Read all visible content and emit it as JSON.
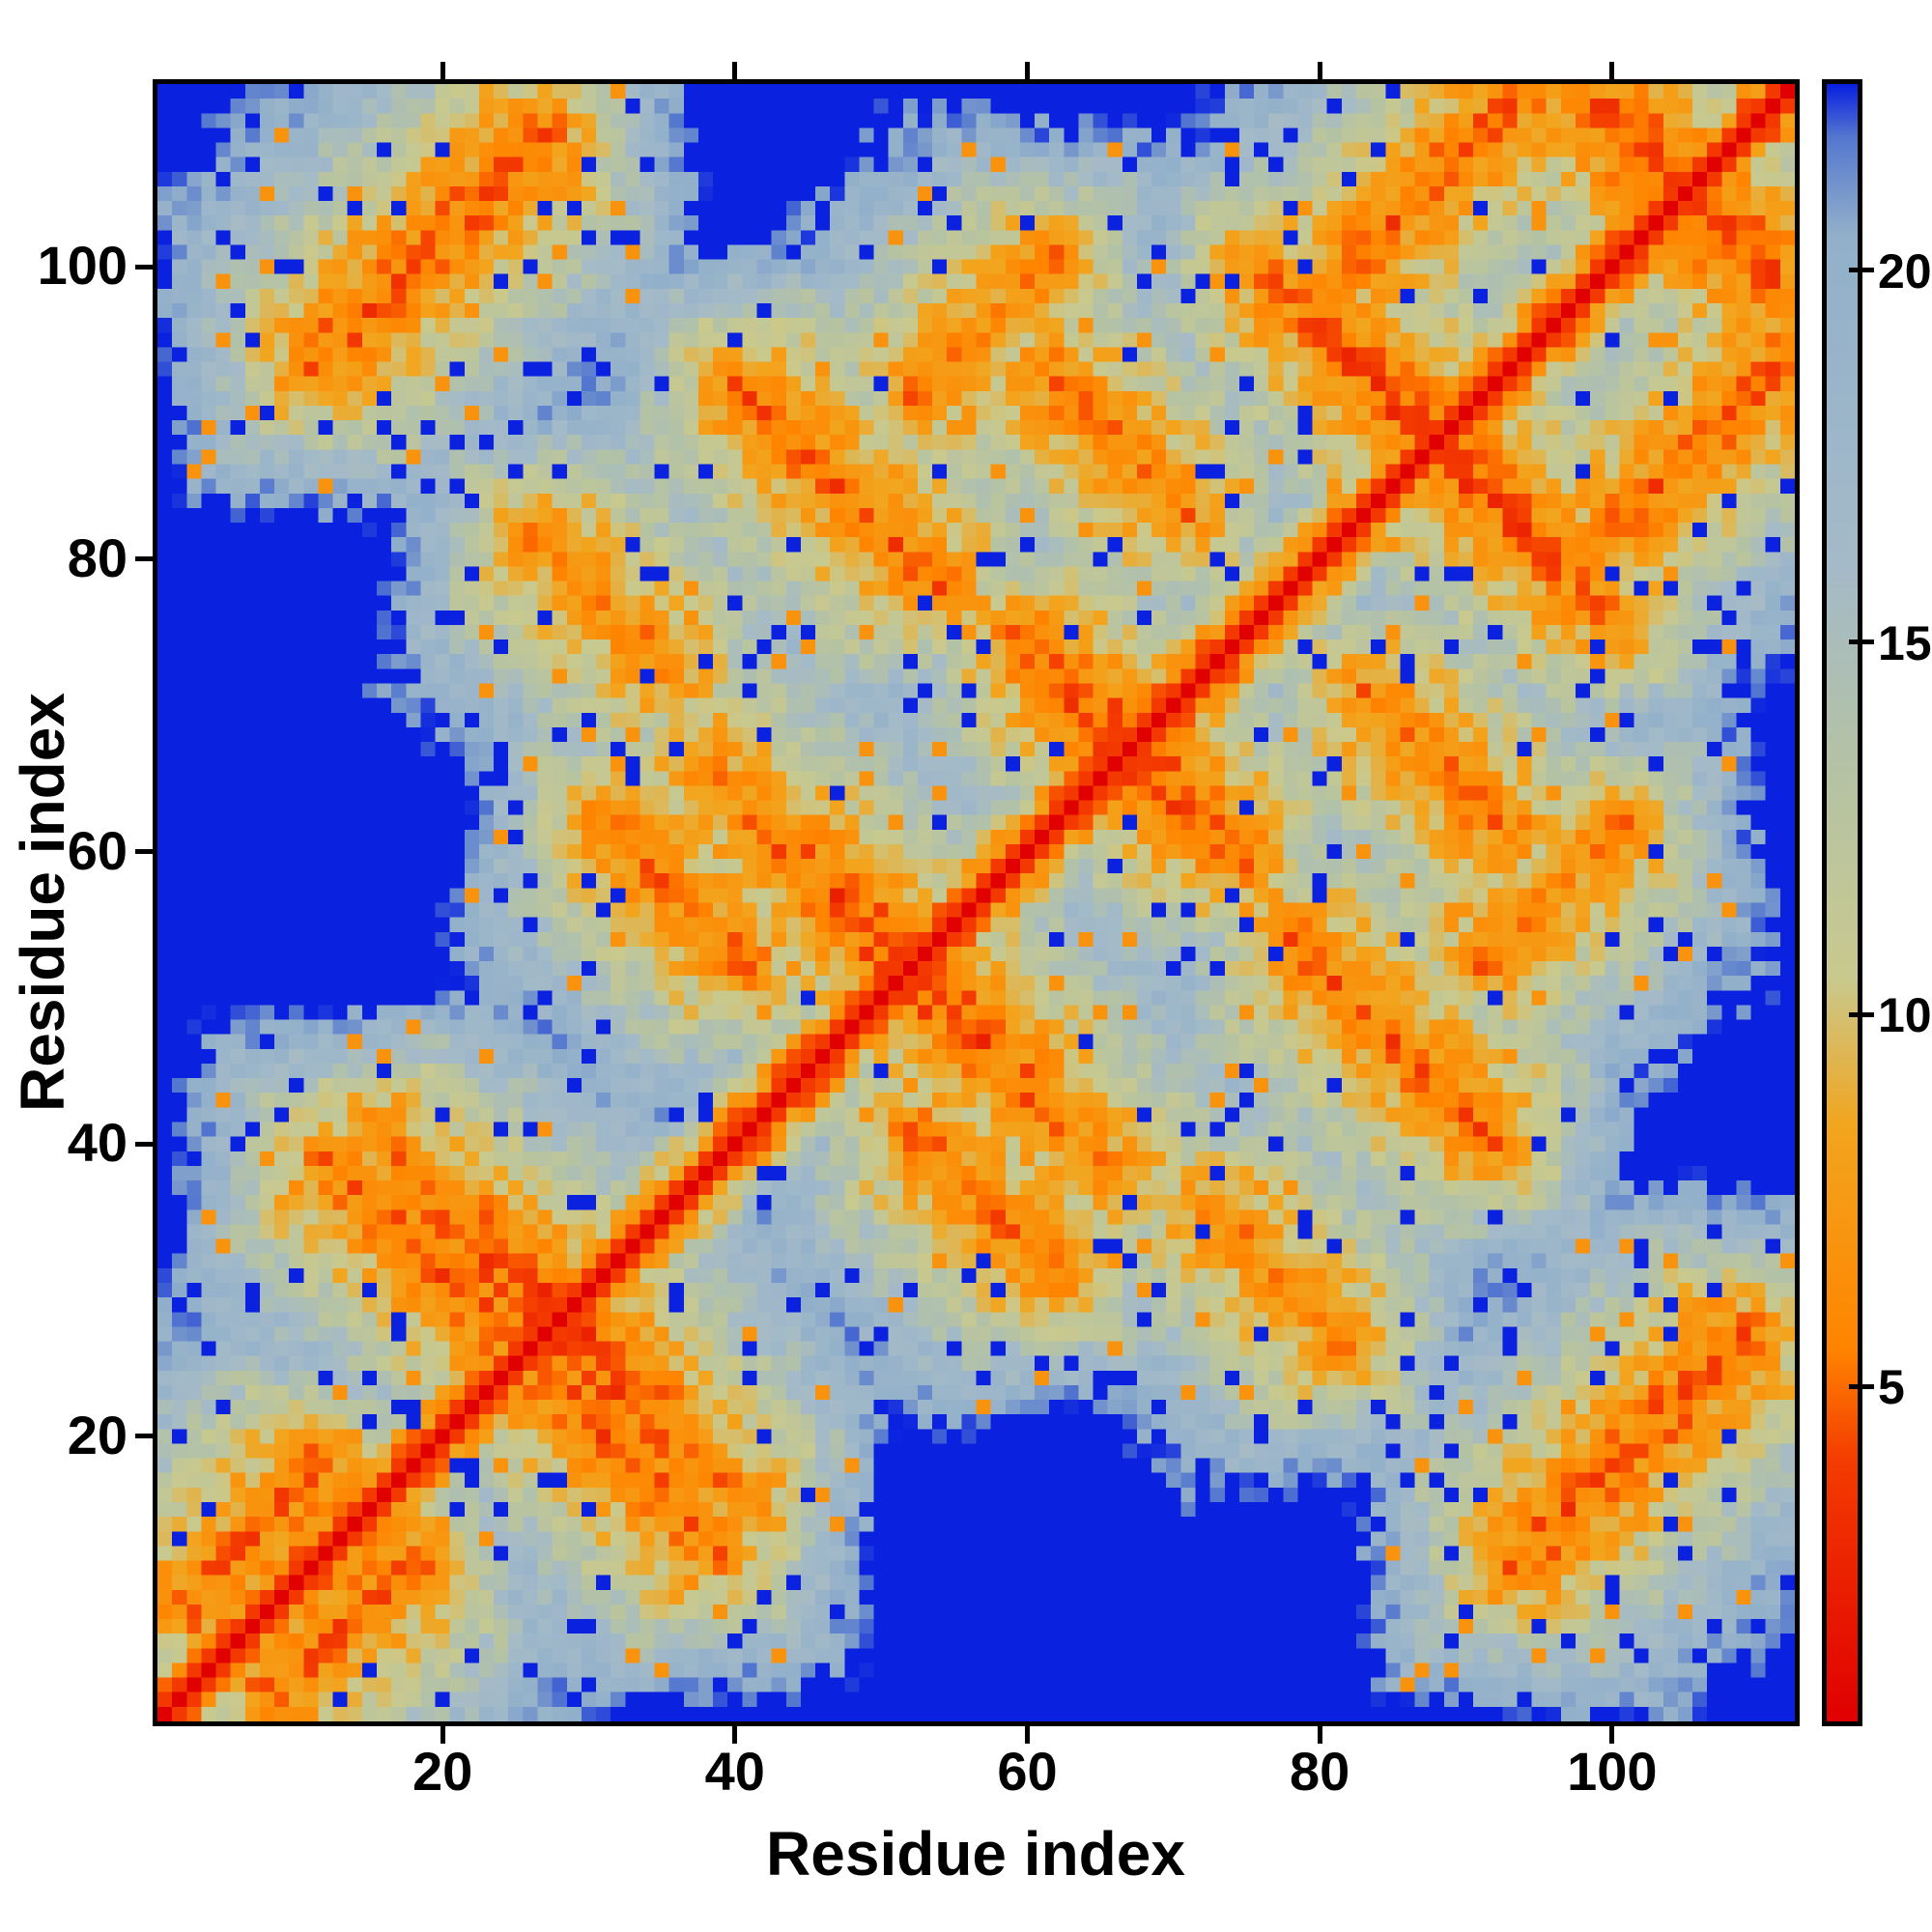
{
  "chart_data": {
    "type": "heatmap",
    "title": "",
    "xlabel": "Residue index",
    "ylabel": "Residue index",
    "x_ticks": [
      20,
      40,
      60,
      80,
      100
    ],
    "y_ticks": [
      20,
      40,
      60,
      80,
      100
    ],
    "x_range": [
      1,
      112
    ],
    "y_range": [
      1,
      112
    ],
    "grid": false,
    "legend": "colorbar-right",
    "colorbar": {
      "ticks": [
        5,
        10,
        15,
        20
      ],
      "range": [
        0.5,
        22.5
      ]
    },
    "colormap": {
      "stops": [
        [
          0.5,
          "#e00000"
        ],
        [
          4.0,
          "#f43c00"
        ],
        [
          5.5,
          "#ff8400"
        ],
        [
          8.5,
          "#f2a51e"
        ],
        [
          10.5,
          "#c9c98e"
        ],
        [
          13.5,
          "#b3c2a6"
        ],
        [
          16.0,
          "#a4bac8"
        ],
        [
          20.5,
          "#92b0ca"
        ],
        [
          21.8,
          "#5578cf"
        ],
        [
          22.5,
          "#0a22e0"
        ]
      ]
    },
    "description": "Symmetric residue-residue distance map of a 112-residue protein. Red main diagonal = zero/short distances, orange anti-diagonal streaks = antiparallel hairpin contacts crossing the diagonal near residues 28, 52, 67, 88 and 105, long-range contact patches listed under generation.contacts, blue field = distances clipped at ~22.",
    "generation": {
      "n_residues": 112,
      "seed": 1234567,
      "vmin": 0.5,
      "vmax": 22.5,
      "backbone": {
        "base": 1.2,
        "slope": 2.6
      },
      "perp_slope": 1.6,
      "axial_slope": 2.0,
      "arm_grow": 0.1,
      "turns": [
        {
          "c": 28,
          "arm": 13,
          "d0": 3.4
        },
        {
          "c": 52,
          "arm": 15,
          "d0": 3.4
        },
        {
          "c": 67,
          "arm": 8,
          "d0": 3.8
        },
        {
          "c": 88,
          "arm": 13,
          "d0": 3.4
        },
        {
          "c": 105,
          "arm": 7,
          "d0": 3.4
        }
      ],
      "contacts": [
        {
          "ci": 7,
          "cj": 13,
          "dir": 1,
          "len": 5,
          "d0": 5.0
        },
        {
          "ci": 18,
          "cj": 33,
          "dir": -1,
          "len": 6,
          "d0": 5.0
        },
        {
          "ci": 19,
          "cj": 101,
          "dir": 1,
          "len": 8,
          "d0": 4.8
        },
        {
          "ci": 47,
          "cj": 85,
          "dir": -1,
          "len": 7,
          "d0": 5.2
        },
        {
          "ci": 31,
          "cj": 77,
          "dir": -1,
          "len": 5,
          "d0": 6.0
        },
        {
          "ci": 36,
          "cj": 57,
          "dir": -1,
          "len": 5,
          "d0": 5.6
        },
        {
          "ci": 66,
          "cj": 88,
          "dir": -1,
          "len": 5,
          "d0": 5.6
        },
        {
          "ci": 57,
          "cj": 96,
          "dir": 1,
          "len": 5,
          "d0": 6.2
        },
        {
          "ci": 88,
          "cj": 106,
          "dir": 1,
          "len": 6,
          "d0": 5.2
        }
      ],
      "noise": {
        "threshold": 4,
        "amp": 4.5,
        "blue_speckle": 0.055,
        "warm_speckle": 0.035
      }
    }
  }
}
